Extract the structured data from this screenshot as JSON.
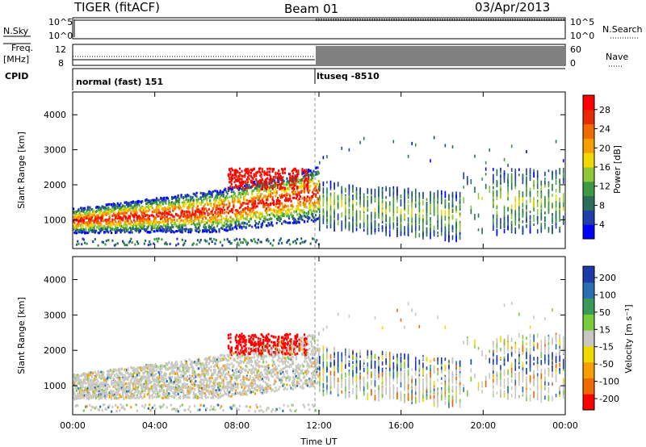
{
  "header": {
    "radar": "TIGER (fitACF)",
    "beam": "Beam 01",
    "date": "03/Apr/2013"
  },
  "status_panel": {
    "nsky_label": "N.Sky",
    "nsky_ticks": [
      "10^5",
      "10^0"
    ],
    "freq_label": "Freq.",
    "freq_unit": "[MHz]",
    "freq_ticks": [
      "12",
      "8"
    ],
    "cpid_label": "CPID",
    "nsearch_label": "N.Search",
    "nsearch_ticks": [
      "10^5",
      "10^0"
    ],
    "nave_label": "Nave",
    "nave_ticks": [
      "60",
      "0"
    ],
    "cpid_modes": [
      {
        "name": "normal (fast) 151",
        "start_hour": 0,
        "end_hour": 12
      },
      {
        "name": "ltuseq -8510",
        "start_hour": 12,
        "end_hour": 24
      }
    ]
  },
  "chart_data": [
    {
      "type": "heatmap",
      "name": "Power",
      "xlabel": "Time UT",
      "ylabel": "Slant Range [km]",
      "x_ticks": [
        "00:00",
        "04:00",
        "08:00",
        "12:00",
        "16:00",
        "20:00",
        "00:00"
      ],
      "xlim_hours": [
        0,
        24
      ],
      "ylim": [
        180,
        4650
      ],
      "y_ticks": [
        1000,
        2000,
        3000,
        4000
      ],
      "colorbar": {
        "label": "Power [dB]",
        "ticks": [
          4,
          8,
          12,
          16,
          20,
          24,
          28
        ],
        "range": [
          1,
          31
        ],
        "colors": [
          "#0000ff",
          "#1e3fa8",
          "#2a6e5a",
          "#3c9b42",
          "#8fc93a",
          "#f0d800",
          "#f5a000",
          "#f06a00",
          "#e82a00",
          "#ff0000"
        ]
      }
    },
    {
      "type": "heatmap",
      "name": "Velocity",
      "xlabel": "Time UT",
      "ylabel": "Slant Range [km]",
      "x_ticks": [
        "00:00",
        "04:00",
        "08:00",
        "12:00",
        "16:00",
        "20:00",
        "00:00"
      ],
      "xlim_hours": [
        0,
        24
      ],
      "ylim": [
        180,
        4650
      ],
      "y_ticks": [
        1000,
        2000,
        3000,
        4000
      ],
      "colorbar": {
        "label": "Velocity [m s⁻¹]",
        "ticks": [
          200,
          100,
          50,
          15,
          -15,
          -50,
          -100,
          -200
        ],
        "colors": [
          "#1a3ca8",
          "#2a6fb0",
          "#3a9a5a",
          "#7acb3a",
          "#c8c8c0",
          "#f0d800",
          "#f5a000",
          "#f06a00",
          "#ff0000"
        ]
      }
    }
  ],
  "time_axis_label": "Time UT"
}
